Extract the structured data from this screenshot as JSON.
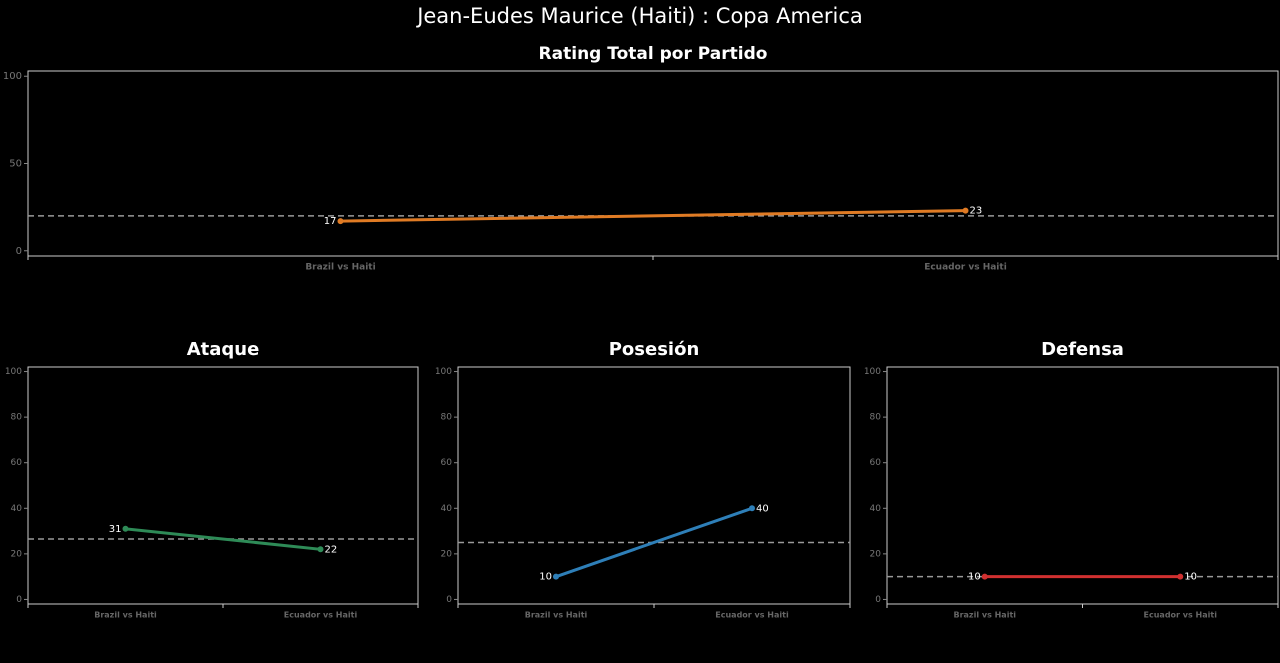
{
  "title": "Jean-Eudes Maurice (Haiti) :  Copa  America",
  "chart_data": [
    {
      "type": "line",
      "title": "Rating Total por Partido",
      "categories": [
        "Brazil vs Haiti",
        "Ecuador vs Haiti"
      ],
      "values": [
        17,
        23
      ],
      "color": "#e07b24",
      "mean_line": 20,
      "ylim": [
        -3,
        103
      ],
      "yticks": [
        0,
        50,
        100
      ]
    },
    {
      "type": "line",
      "title": "Ataque",
      "categories": [
        "Brazil vs Haiti",
        "Ecuador vs Haiti"
      ],
      "values": [
        31,
        22
      ],
      "color": "#2e8b57",
      "mean_line": 26.5,
      "ylim": [
        -2,
        102
      ],
      "yticks": [
        0,
        20,
        40,
        60,
        80,
        100
      ]
    },
    {
      "type": "line",
      "title": "Posesión",
      "categories": [
        "Brazil vs Haiti",
        "Ecuador vs Haiti"
      ],
      "values": [
        10,
        40
      ],
      "color": "#2e7fb8",
      "mean_line": 25,
      "ylim": [
        -2,
        102
      ],
      "yticks": [
        0,
        20,
        40,
        60,
        80,
        100
      ]
    },
    {
      "type": "line",
      "title": "Defensa",
      "categories": [
        "Brazil vs Haiti",
        "Ecuador vs Haiti"
      ],
      "values": [
        10,
        10
      ],
      "color": "#d03030",
      "mean_line": 10,
      "ylim": [
        -2,
        102
      ],
      "yticks": [
        0,
        20,
        40,
        60,
        80,
        100
      ]
    }
  ]
}
